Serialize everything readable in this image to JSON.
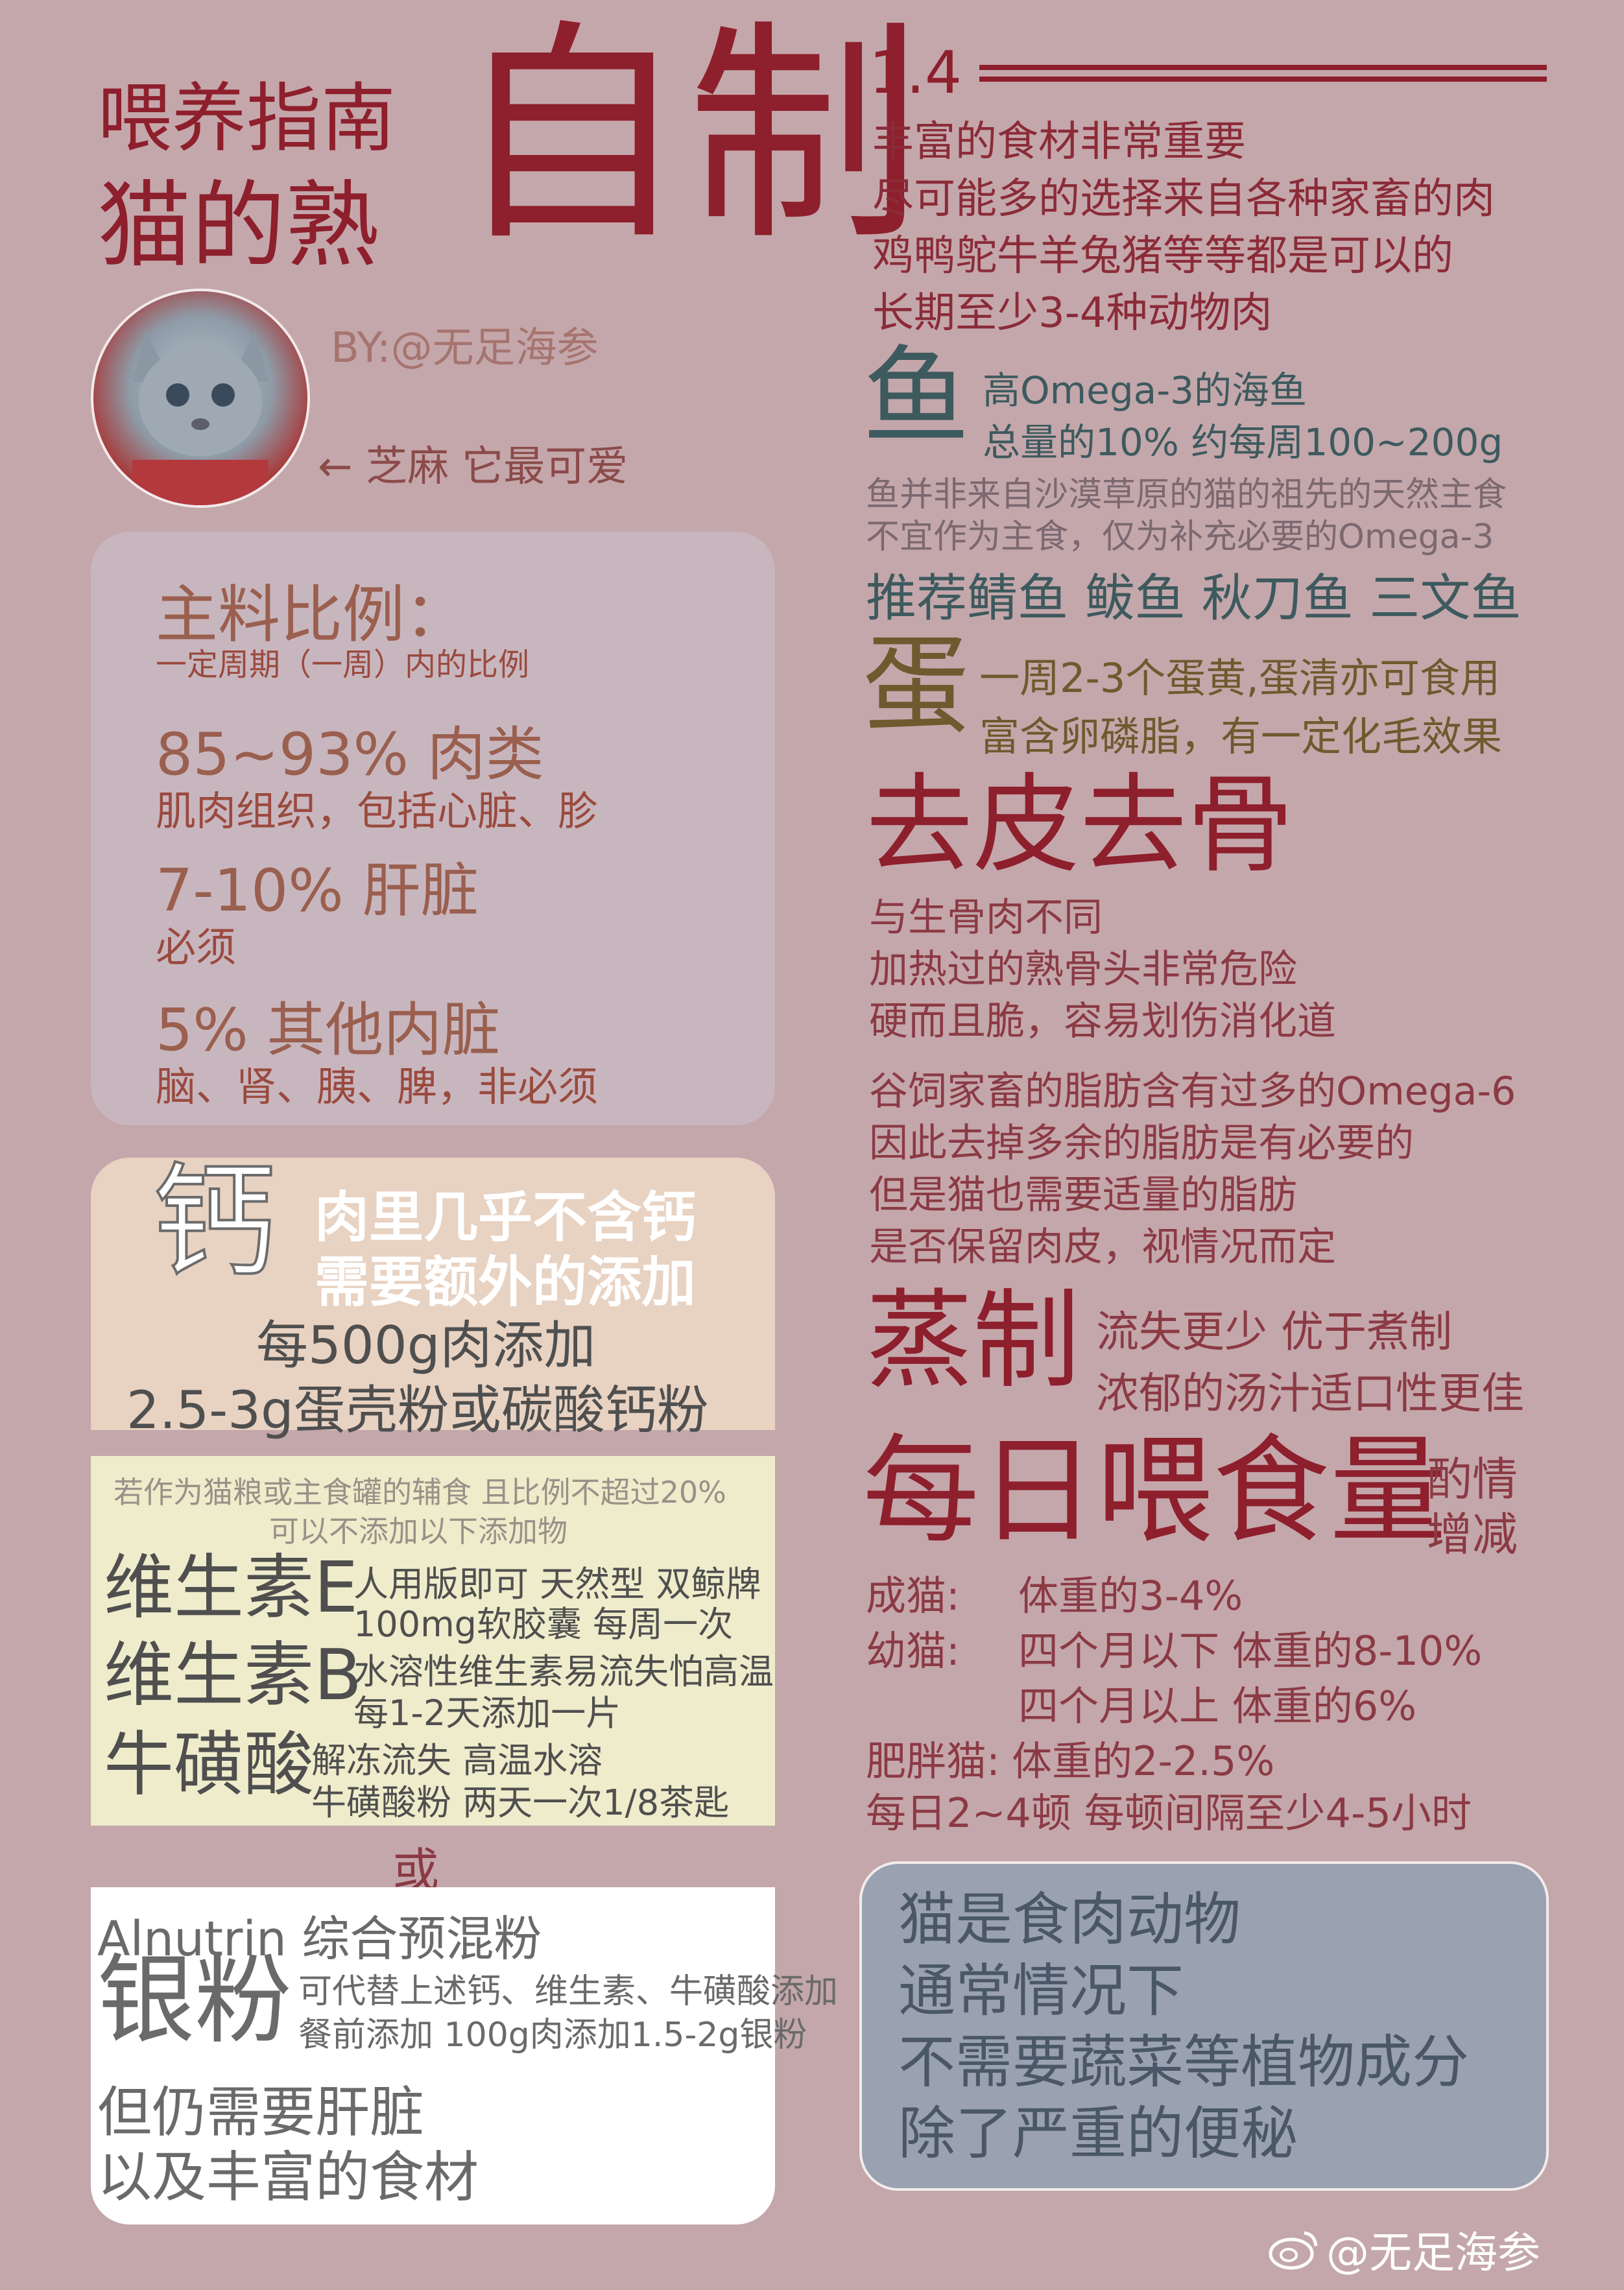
{
  "header": {
    "title_small": "喂养指南",
    "title_mid": "猫的熟",
    "title_big": "自制",
    "version": "1.4",
    "byline": "BY:@无足海参",
    "avatar_caption": "← 芝麻 它最可爱"
  },
  "intro": {
    "lines": [
      "丰富的食材非常重要",
      "尽可能多的选择来自各种家畜的肉",
      "鸡鸭鸵牛羊兔猪等等都是可以的",
      "长期至少3-4种动物肉"
    ]
  },
  "fish": {
    "glyph": "鱼",
    "line1": "高Omega-3的海鱼",
    "line2": "总量的10%    约每周100~200g",
    "note1": "鱼并非来自沙漠草原的猫的祖先的天然主食",
    "note2": "不宜作为主食，仅为补充必要的Omega-3",
    "recommend": "推荐鲭鱼 鲅鱼 秋刀鱼 三文鱼"
  },
  "egg": {
    "glyph": "蛋",
    "line1": "一周2-3个蛋黄,蛋清亦可食用",
    "line2": "富含卵磷脂，有一定化毛效果"
  },
  "skin_bone": {
    "title": "去皮去骨",
    "lines": [
      "与生骨肉不同",
      "加热过的熟骨头非常危险",
      "硬而且脆，容易划伤消化道",
      "谷饲家畜的脂肪含有过多的Omega-6",
      "因此去掉多余的脂肪是有必要的",
      "但是猫也需要适量的脂肪",
      "是否保留肉皮，视情况而定"
    ]
  },
  "steam": {
    "title": "蒸制",
    "line1": "流失更少  优于煮制",
    "line2": "浓郁的汤汁适口性更佳"
  },
  "daily": {
    "title": "每日喂食量",
    "side1": "酌情",
    "side2": "增减",
    "adult_label": "成猫:",
    "adult_value": "体重的3-4%",
    "kitten_label": "幼猫:",
    "kitten_value1": "四个月以下 体重的8-10%",
    "kitten_value2": "四个月以上 体重的6%",
    "fat_label": "肥胖猫:",
    "fat_value": "体重的2-2.5%",
    "meals": "每日2~4顿    每顿间隔至少4-5小时"
  },
  "ratio": {
    "title": "主料比例：",
    "subtitle": "一定周期（一周）内的比例",
    "meat_pct": "85~93% 肉类",
    "meat_desc": "肌肉组织，包括心脏、胗",
    "liver_pct": "7-10% 肝脏",
    "liver_desc": "必须",
    "organ_pct": "5% 其他内脏",
    "organ_desc": "脑、肾、胰、脾，非必须"
  },
  "calcium": {
    "glyph": "钙",
    "head1": "肉里几乎不含钙",
    "head2": "需要额外的添加",
    "line1": "每500g肉添加",
    "line2": "2.5-3g蛋壳粉或碳酸钙粉"
  },
  "supplements": {
    "note1": "若作为猫粮或主食罐的辅食 且比例不超过20%",
    "note2": "可以不添加以下添加物",
    "vite_label": "维生素E",
    "vite_line1": "人用版即可  天然型 双鲸牌",
    "vite_line2": "100mg软胶囊   每周一次",
    "vitb_label": "维生素B",
    "vitb_line1": "水溶性维生素易流失怕高温",
    "vitb_line2": "每1-2天添加一片",
    "taurine_label": "牛磺酸",
    "taurine_line1": "解冻流失 高温水溶",
    "taurine_line2": "牛磺酸粉 两天一次1/8茶匙",
    "or": "或"
  },
  "alnutrin": {
    "head": "Alnutrin 综合预混粉",
    "big": "银粉",
    "desc1": "可代替上述钙、维生素、牛磺酸添加",
    "desc2": "餐前添加  100g肉添加1.5-2g银粉",
    "line1": "但仍需要肝脏",
    "line2": "以及丰富的食材"
  },
  "carnivore": {
    "lines": [
      "猫是食肉动物",
      "通常情况下",
      "不需要蔬菜等植物成分",
      "除了严重的便秘"
    ]
  },
  "watermark": "@无足海参",
  "colors": {
    "background": "#c4a7ab",
    "accent_red": "#8e1f2c",
    "ratio_box": "#c8b6bf",
    "calcium_box": "#e8d2c2",
    "supp_box": "#eeeccb",
    "carnivore_box": "#9aa1b0"
  }
}
